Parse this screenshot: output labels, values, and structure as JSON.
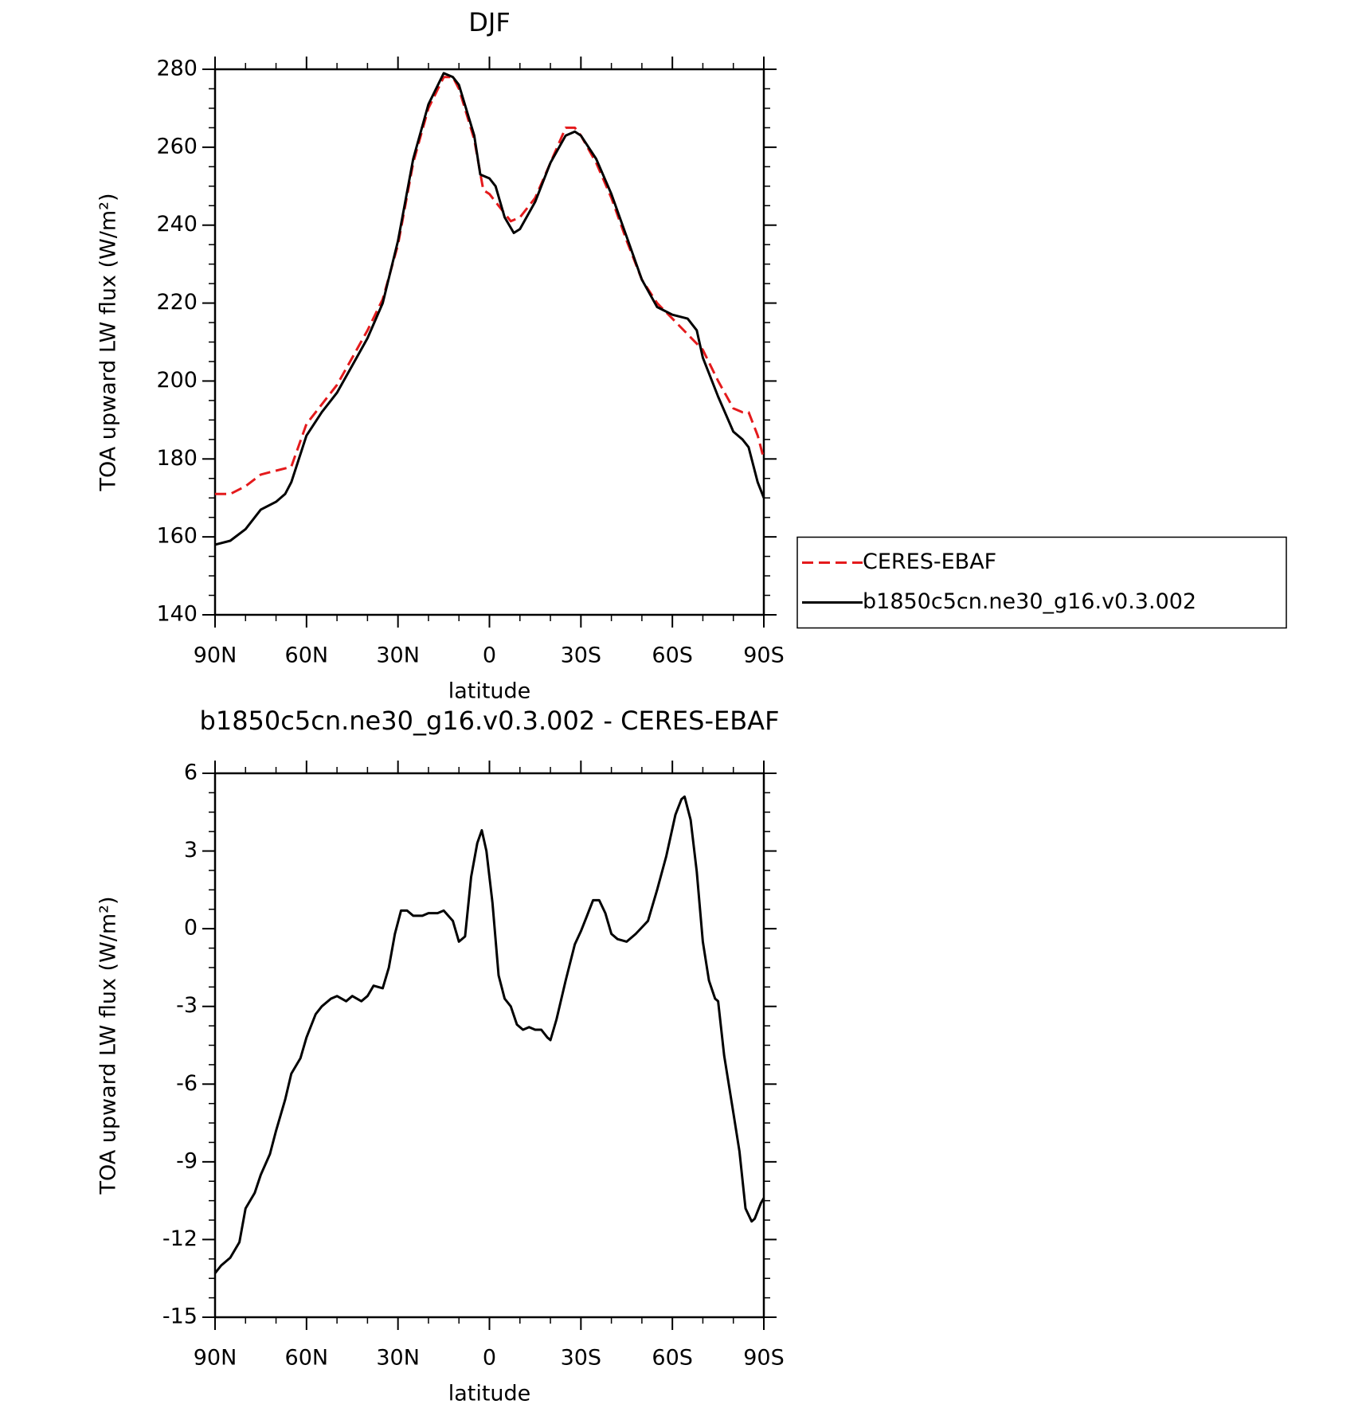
{
  "chart_data": [
    {
      "type": "line",
      "title": "DJF",
      "xlabel": "latitude",
      "ylabel": "TOA upward LW flux (W/m²)",
      "xlim": [
        90,
        -90
      ],
      "xticks": [
        {
          "value": 90,
          "label": "90N"
        },
        {
          "value": 60,
          "label": "60N"
        },
        {
          "value": 30,
          "label": "30N"
        },
        0,
        {
          "value": -30,
          "label": "30S"
        },
        {
          "value": -60,
          "label": "60S"
        },
        {
          "value": -90,
          "label": "90S"
        }
      ],
      "ylim": [
        140,
        280
      ],
      "yticks": [
        140,
        160,
        180,
        200,
        220,
        240,
        260,
        280
      ],
      "legend": "right",
      "series": [
        {
          "name": "CERES-EBAF",
          "color": "#e41a1c",
          "style": "dashed",
          "x": [
            90,
            85,
            80,
            75,
            70,
            65,
            60,
            55,
            50,
            45,
            40,
            35,
            30,
            25,
            20,
            15,
            12,
            10,
            5,
            2,
            0,
            -3,
            -7,
            -10,
            -15,
            -20,
            -25,
            -28,
            -30,
            -35,
            -40,
            -45,
            -50,
            -55,
            -60,
            -65,
            -70,
            -75,
            -80,
            -83,
            -85,
            -88,
            -90
          ],
          "values": [
            171,
            171,
            173,
            176,
            177,
            178,
            189,
            194,
            199,
            206,
            213,
            221,
            235,
            256,
            270,
            278,
            278,
            275,
            262,
            249,
            248,
            245,
            241,
            242,
            247,
            256,
            265,
            265,
            263,
            256,
            247,
            236,
            226,
            220,
            216,
            212,
            208,
            200,
            193,
            192,
            192,
            186,
            180
          ]
        },
        {
          "name": "b1850c5cn.ne30_g16.v0.3.002",
          "color": "#000000",
          "style": "solid",
          "x": [
            90,
            85,
            80,
            75,
            70,
            67,
            65,
            60,
            55,
            50,
            45,
            40,
            35,
            30,
            25,
            20,
            15,
            12,
            10,
            5,
            3,
            0,
            -2,
            -5,
            -8,
            -10,
            -15,
            -20,
            -25,
            -28,
            -30,
            -35,
            -40,
            -45,
            -50,
            -55,
            -60,
            -65,
            -68,
            -70,
            -75,
            -80,
            -83,
            -85,
            -88,
            -90
          ],
          "values": [
            158,
            159,
            162,
            167,
            169,
            171,
            174,
            186,
            192,
            197,
            204,
            211,
            220,
            236,
            257,
            271,
            279,
            278,
            276,
            263,
            253,
            252,
            250,
            242,
            238,
            239,
            246,
            256,
            263,
            264,
            263,
            257,
            248,
            237,
            226,
            219,
            217,
            216,
            213,
            206,
            196,
            187,
            185,
            183,
            174,
            170
          ]
        }
      ]
    },
    {
      "type": "line",
      "title": "b1850c5cn.ne30_g16.v0.3.002 - CERES-EBAF",
      "xlabel": "latitude",
      "ylabel": "TOA upward LW flux (W/m²)",
      "xlim": [
        90,
        -90
      ],
      "xticks": [
        {
          "value": 90,
          "label": "90N"
        },
        {
          "value": 60,
          "label": "60N"
        },
        {
          "value": 30,
          "label": "30N"
        },
        0,
        {
          "value": -30,
          "label": "30S"
        },
        {
          "value": -60,
          "label": "60S"
        },
        {
          "value": -90,
          "label": "90S"
        }
      ],
      "ylim": [
        -15,
        6
      ],
      "yticks": [
        -15,
        -12,
        -9,
        -6,
        -3,
        0,
        3,
        6
      ],
      "series": [
        {
          "color": "#000000",
          "style": "solid",
          "x": [
            90,
            88,
            85,
            82,
            80,
            77,
            75,
            72,
            70,
            67,
            65,
            62,
            60,
            57,
            55,
            52,
            50,
            47,
            45,
            42,
            40,
            38,
            35,
            33,
            31,
            29,
            27,
            25,
            22,
            20,
            17,
            15,
            12,
            10,
            8,
            6,
            4,
            2.5,
            1,
            -1,
            -3,
            -5,
            -7,
            -9,
            -11,
            -13,
            -15,
            -17,
            -19,
            -20,
            -22,
            -25,
            -28,
            -30,
            -32,
            -34,
            -36,
            -38,
            -40,
            -42,
            -45,
            -48,
            -52,
            -55,
            -58,
            -61,
            -63,
            -64,
            -66,
            -68,
            -70,
            -72,
            -74,
            -75,
            -77,
            -80,
            -82,
            -84,
            -86,
            -87,
            -89,
            -90
          ],
          "values": [
            -13.3,
            -13,
            -12.7,
            -12.1,
            -10.8,
            -10.2,
            -9.5,
            -8.7,
            -7.8,
            -6.6,
            -5.6,
            -5,
            -4.2,
            -3.3,
            -3,
            -2.7,
            -2.6,
            -2.8,
            -2.6,
            -2.8,
            -2.6,
            -2.2,
            -2.3,
            -1.5,
            -0.2,
            0.7,
            0.7,
            0.5,
            0.5,
            0.6,
            0.6,
            0.7,
            0.3,
            -0.5,
            -0.3,
            2,
            3.3,
            3.8,
            3,
            1,
            -1.8,
            -2.7,
            -3,
            -3.7,
            -3.9,
            -3.8,
            -3.9,
            -3.9,
            -4.2,
            -4.3,
            -3.5,
            -2,
            -0.6,
            -0.1,
            0.5,
            1.1,
            1.1,
            0.6,
            -0.2,
            -0.4,
            -0.5,
            -0.2,
            0.3,
            1.5,
            2.8,
            4.4,
            5,
            5.1,
            4.2,
            2.2,
            -0.5,
            -2,
            -2.7,
            -2.8,
            -4.9,
            -7.1,
            -8.6,
            -10.8,
            -11.3,
            -11.2,
            -10.6,
            -10.4
          ]
        }
      ]
    }
  ]
}
